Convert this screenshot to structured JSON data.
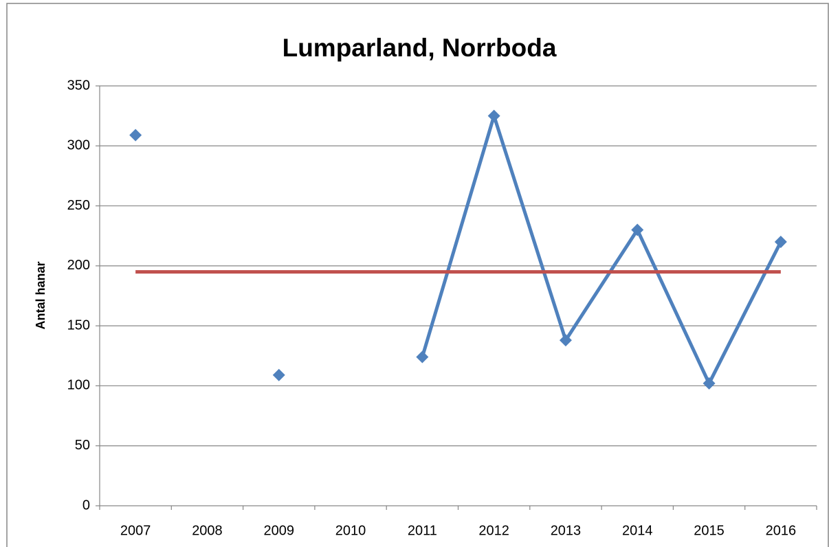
{
  "chart_data": {
    "type": "line",
    "title": "Lumparland, Norrboda",
    "y_label": "Antal hanar",
    "categories": [
      "2007",
      "2008",
      "2009",
      "2010",
      "2011",
      "2012",
      "2013",
      "2014",
      "2015",
      "2016"
    ],
    "series": [
      {
        "color": "#4f81bd",
        "marker": "diamond",
        "values": [
          309,
          null,
          109,
          null,
          124,
          325,
          138,
          230,
          102,
          220
        ]
      },
      {
        "color": "#c0504d",
        "marker": "none",
        "values": [
          195,
          195,
          195,
          195,
          195,
          195,
          195,
          195,
          195,
          195
        ]
      }
    ],
    "ylim": [
      0,
      350
    ],
    "yticks": [
      0,
      50,
      100,
      150,
      200,
      250,
      300,
      350
    ],
    "grid": true
  }
}
